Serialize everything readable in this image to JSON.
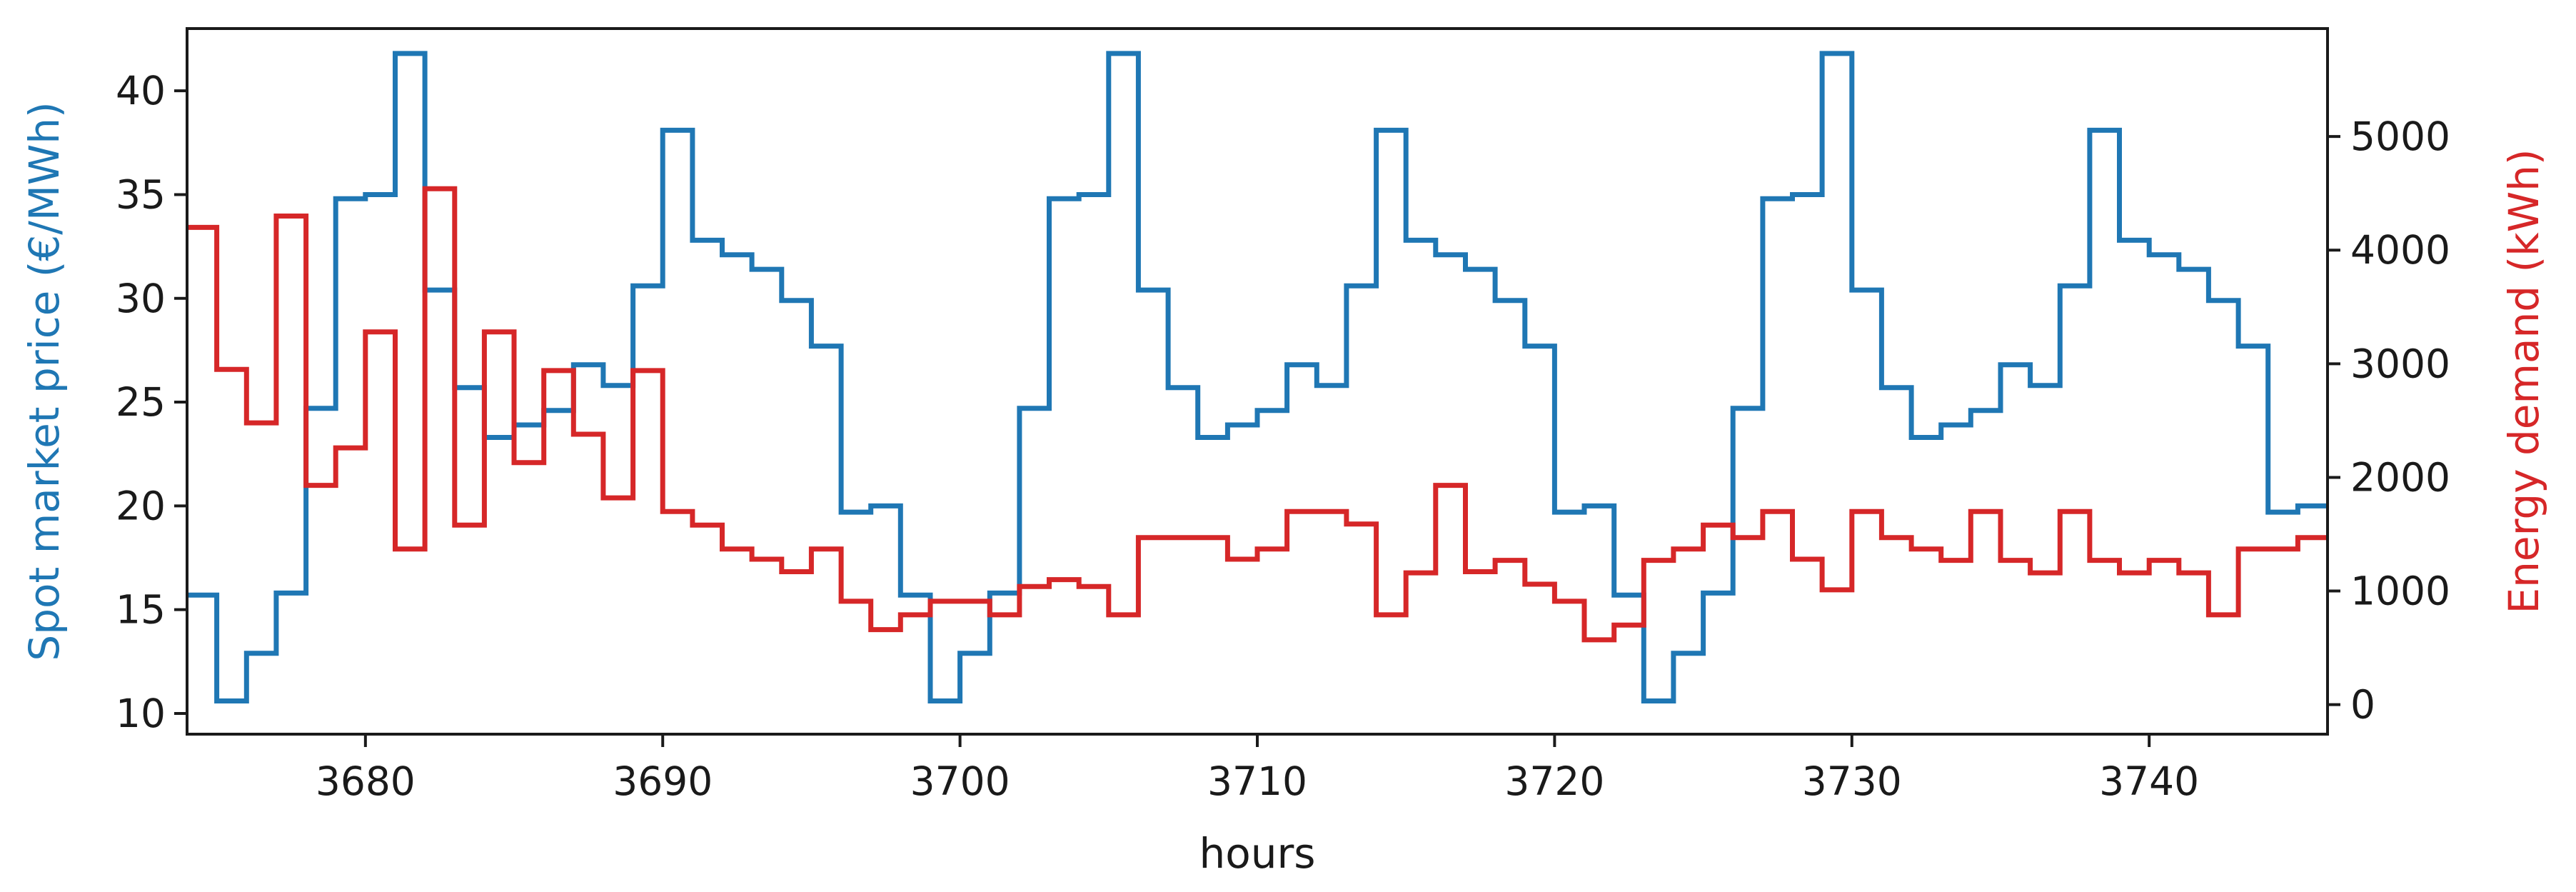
{
  "chart_data": {
    "type": "line",
    "step": "post",
    "title": "",
    "xlabel": "hours",
    "ylabel_left": "Spot market price (€/MWh)",
    "ylabel_right": "Energy demand (kWh)",
    "xlim": [
      3674,
      3746
    ],
    "ylim_left": [
      9.0,
      43.0
    ],
    "ylim_right": [
      -260,
      5950
    ],
    "x_ticks": [
      3680,
      3690,
      3700,
      3710,
      3720,
      3730,
      3740
    ],
    "y_ticks_left": [
      10,
      15,
      20,
      25,
      30,
      35,
      40
    ],
    "y_ticks_right": [
      0,
      1000,
      2000,
      3000,
      4000,
      5000
    ],
    "grid": false,
    "legend": "none",
    "colors": {
      "price": "#1f77b4",
      "demand": "#d62728",
      "axes": "#1a1a1a"
    },
    "x": [
      3674,
      3675,
      3676,
      3677,
      3678,
      3679,
      3680,
      3681,
      3682,
      3683,
      3684,
      3685,
      3686,
      3687,
      3688,
      3689,
      3690,
      3691,
      3692,
      3693,
      3694,
      3695,
      3696,
      3697,
      3698,
      3699,
      3700,
      3701,
      3702,
      3703,
      3704,
      3705,
      3706,
      3707,
      3708,
      3709,
      3710,
      3711,
      3712,
      3713,
      3714,
      3715,
      3716,
      3717,
      3718,
      3719,
      3720,
      3721,
      3722,
      3723,
      3724,
      3725,
      3726,
      3727,
      3728,
      3729,
      3730,
      3731,
      3732,
      3733,
      3734,
      3735,
      3736,
      3737,
      3738,
      3739,
      3740,
      3741,
      3742,
      3743,
      3744,
      3745
    ],
    "series": [
      {
        "name": "Spot market price (€/MWh)",
        "axis": "left",
        "values": [
          15.7,
          10.6,
          12.9,
          15.8,
          24.7,
          34.8,
          35.0,
          41.8,
          30.4,
          25.7,
          23.3,
          23.9,
          24.6,
          26.8,
          25.8,
          30.6,
          38.1,
          32.8,
          32.1,
          31.4,
          29.9,
          27.7,
          19.7,
          20.0,
          15.7,
          10.6,
          12.9,
          15.8,
          24.7,
          34.8,
          35.0,
          41.8,
          30.4,
          25.7,
          23.3,
          23.9,
          24.6,
          26.8,
          25.8,
          30.6,
          38.1,
          32.8,
          32.1,
          31.4,
          29.9,
          27.7,
          19.7,
          20.0,
          15.7,
          10.6,
          12.9,
          15.8,
          24.7,
          34.8,
          35.0,
          41.8,
          30.4,
          25.7,
          23.3,
          23.9,
          24.6,
          26.8,
          25.8,
          30.6,
          38.1,
          32.8,
          32.1,
          31.4,
          29.9,
          27.7,
          19.7,
          20.0
        ]
      },
      {
        "name": "Energy demand (kWh)",
        "axis": "right",
        "values": [
          4200,
          2950,
          2480,
          4300,
          1930,
          2260,
          3280,
          1370,
          4540,
          1580,
          3280,
          2130,
          2940,
          2380,
          1820,
          2940,
          1700,
          1580,
          1370,
          1280,
          1170,
          1370,
          910,
          660,
          790,
          910,
          910,
          790,
          1040,
          1100,
          1040,
          790,
          1470,
          1470,
          1470,
          1280,
          1370,
          1700,
          1700,
          1590,
          790,
          1160,
          1930,
          1170,
          1270,
          1060,
          910,
          570,
          700,
          1270,
          1370,
          1580,
          1470,
          1700,
          1280,
          1010,
          1700,
          1470,
          1370,
          1270,
          1700,
          1270,
          1160,
          1700,
          1270,
          1160,
          1270,
          1160,
          790,
          1370,
          1370,
          1470
        ]
      }
    ]
  }
}
